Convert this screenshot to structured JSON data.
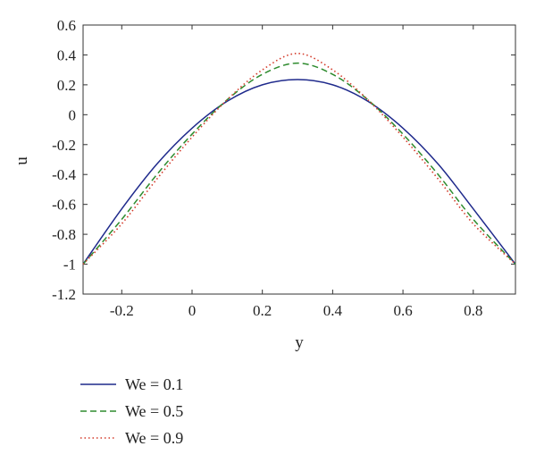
{
  "chart_data": {
    "type": "line",
    "xlabel": "y",
    "ylabel": "u",
    "xlim": [
      -0.31,
      0.92
    ],
    "ylim": [
      -1.2,
      0.6
    ],
    "x_ticks": [
      "-0.2",
      "0",
      "0.2",
      "0.4",
      "0.6",
      "0.8"
    ],
    "y_ticks": [
      "0.6",
      "0.4",
      "0.2",
      "0",
      "-0.2",
      "-0.4",
      "-0.6",
      "-0.8",
      "-1",
      "-1.2"
    ],
    "grid": false,
    "legend_position": "below-left",
    "series": [
      {
        "name": "We = 0.1",
        "color": "#1f2a8c",
        "style": "solid",
        "x": [
          -0.31,
          -0.2,
          -0.1,
          0.0,
          0.1,
          0.2,
          0.3,
          0.4,
          0.5,
          0.6,
          0.7,
          0.8,
          0.92
        ],
        "y": [
          -1.0,
          -0.63,
          -0.33,
          -0.09,
          0.09,
          0.2,
          0.235,
          0.2,
          0.09,
          -0.09,
          -0.33,
          -0.63,
          -1.0
        ]
      },
      {
        "name": "We = 0.5",
        "color": "#2e8b2e",
        "style": "dashed",
        "x": [
          -0.31,
          -0.2,
          -0.1,
          0.0,
          0.1,
          0.2,
          0.3,
          0.4,
          0.5,
          0.6,
          0.7,
          0.8,
          0.92
        ],
        "y": [
          -1.0,
          -0.7,
          -0.4,
          -0.13,
          0.1,
          0.27,
          0.345,
          0.27,
          0.1,
          -0.13,
          -0.4,
          -0.7,
          -1.0
        ]
      },
      {
        "name": "We = 0.9",
        "color": "#d43a2a",
        "style": "dotted",
        "x": [
          -0.31,
          -0.2,
          -0.1,
          0.0,
          0.1,
          0.2,
          0.3,
          0.4,
          0.5,
          0.6,
          0.7,
          0.8,
          0.92
        ],
        "y": [
          -1.0,
          -0.73,
          -0.43,
          -0.15,
          0.1,
          0.3,
          0.41,
          0.3,
          0.1,
          -0.15,
          -0.43,
          -0.73,
          -1.0
        ]
      }
    ]
  }
}
